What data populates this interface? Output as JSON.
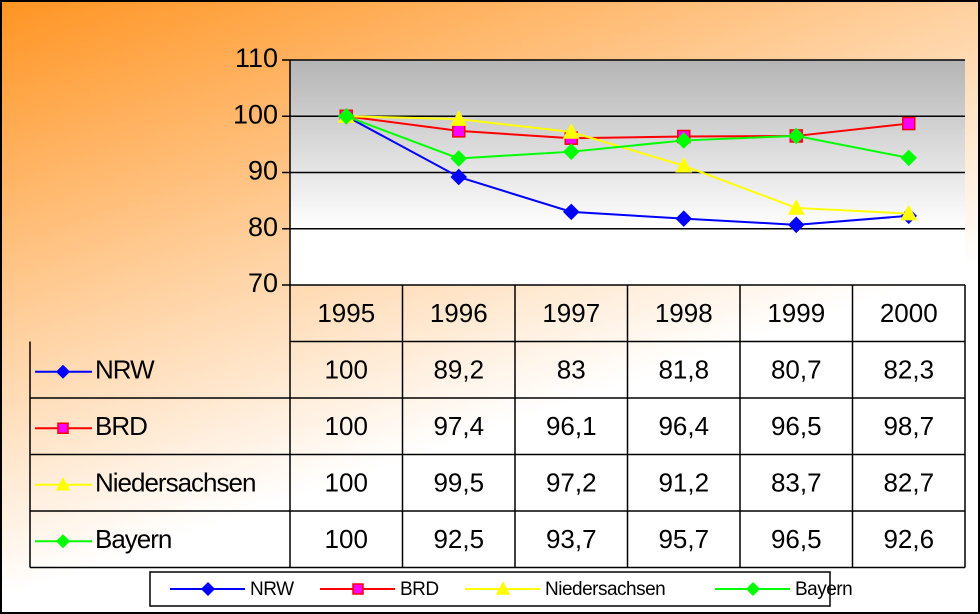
{
  "chart_data": {
    "type": "line",
    "categories": [
      "1995",
      "1996",
      "1997",
      "1998",
      "1999",
      "2000"
    ],
    "series": [
      {
        "name": "NRW",
        "color": "#0000ff",
        "marker": "diamond",
        "marker_fill": "#0000ff",
        "values": [
          100,
          89.2,
          83,
          81.8,
          80.7,
          82.3
        ],
        "value_labels": [
          "100",
          "89,2",
          "83",
          "81,8",
          "80,7",
          "82,3"
        ]
      },
      {
        "name": "BRD",
        "color": "#ff0000",
        "marker": "square",
        "marker_fill": "#ff00ff",
        "values": [
          100,
          97.4,
          96.1,
          96.4,
          96.5,
          98.7
        ],
        "value_labels": [
          "100",
          "97,4",
          "96,1",
          "96,4",
          "96,5",
          "98,7"
        ]
      },
      {
        "name": "Niedersachsen",
        "color": "#ffff00",
        "marker": "triangle",
        "marker_fill": "#ffff00",
        "values": [
          100,
          99.5,
          97.2,
          91.2,
          83.7,
          82.7
        ],
        "value_labels": [
          "100",
          "99,5",
          "97,2",
          "91,2",
          "83,7",
          "82,7"
        ]
      },
      {
        "name": "Bayern",
        "color": "#00ff00",
        "marker": "diamond",
        "marker_fill": "#00ff00",
        "values": [
          100,
          92.5,
          93.7,
          95.7,
          96.5,
          92.6
        ],
        "value_labels": [
          "100",
          "92,5",
          "93,7",
          "95,7",
          "96,5",
          "92,6"
        ]
      }
    ],
    "ylim": [
      70,
      110
    ],
    "yticks": [
      70,
      80,
      90,
      100,
      110
    ],
    "grid": true,
    "legend": "bottom",
    "data_table": true
  }
}
